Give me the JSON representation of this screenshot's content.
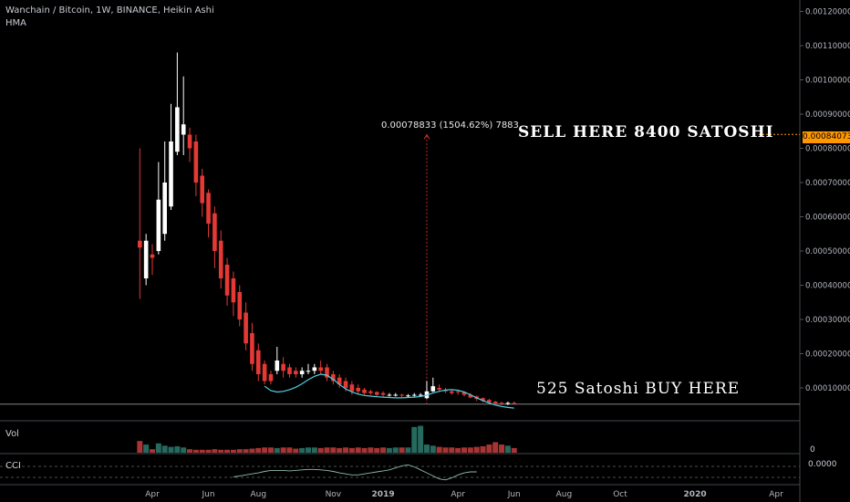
{
  "header": {
    "title": "Wanchain / Bitcoin, 1W, BINANCE, Heikin Ashi",
    "indicator": "HMA"
  },
  "annotations": {
    "sell": "SELL HERE 8400 SATOSHI",
    "buy": "525 Satoshi BUY HERE",
    "measure": "0.00078833 (1504.62%) 7883"
  },
  "price_tag": "0.00084073",
  "panes": {
    "volume_label": "Vol",
    "volume_axis": "0",
    "cci_label": "CCI",
    "cci_axis": "0.0000"
  },
  "colors": {
    "up": "#ffffff",
    "down": "#e53935",
    "hma": "#4dd0e1",
    "vol_up": "#26695e",
    "vol_down": "#a93434",
    "tag": "#ff9800"
  },
  "chart_data": {
    "type": "candlestick",
    "title": "Wanchain / Bitcoin, 1W, BINANCE, Heikin Ashi",
    "y_axis_ticks": [
      "0.00120000",
      "0.00110000",
      "0.00100000",
      "0.00090000",
      "0.00080000",
      "0.00070000",
      "0.00060000",
      "0.00050000",
      "0.00040000",
      "0.00030000",
      "0.00020000",
      "0.00010000"
    ],
    "ylim": [
      0.0,
      0.00127
    ],
    "x_axis_ticks": [
      "Apr",
      "Jun",
      "Aug",
      "Nov",
      "2019",
      "Apr",
      "Jun",
      "Aug",
      "Oct",
      "2020",
      "Apr"
    ],
    "x_axis_tick_weeks": [
      0,
      9,
      17,
      29,
      37,
      49,
      58,
      66,
      75,
      87,
      100
    ],
    "first_week": -2,
    "candles": [
      {
        "w": -2,
        "o": 0.00053,
        "c": 0.00051,
        "h": 0.0008,
        "l": 0.00036
      },
      {
        "w": -1,
        "o": 0.00042,
        "c": 0.00053,
        "h": 0.00055,
        "l": 0.0004
      },
      {
        "w": 0,
        "o": 0.00049,
        "c": 0.00048,
        "h": 0.00052,
        "l": 0.00043
      },
      {
        "w": 1,
        "o": 0.0005,
        "c": 0.00065,
        "h": 0.00076,
        "l": 0.00049
      },
      {
        "w": 2,
        "o": 0.00055,
        "c": 0.0007,
        "h": 0.00082,
        "l": 0.00053
      },
      {
        "w": 3,
        "o": 0.00063,
        "c": 0.00082,
        "h": 0.00093,
        "l": 0.00062
      },
      {
        "w": 4,
        "o": 0.00079,
        "c": 0.00092,
        "h": 0.00108,
        "l": 0.00078
      },
      {
        "w": 5,
        "o": 0.00084,
        "c": 0.00087,
        "h": 0.00101,
        "l": 0.00078
      },
      {
        "w": 6,
        "o": 0.00084,
        "c": 0.0008,
        "h": 0.00086,
        "l": 0.00076
      },
      {
        "w": 7,
        "o": 0.00082,
        "c": 0.0007,
        "h": 0.00084,
        "l": 0.00066
      },
      {
        "w": 8,
        "o": 0.00072,
        "c": 0.00064,
        "h": 0.00074,
        "l": 0.0006
      },
      {
        "w": 9,
        "o": 0.00067,
        "c": 0.00058,
        "h": 0.00068,
        "l": 0.00054
      },
      {
        "w": 10,
        "o": 0.00061,
        "c": 0.0005,
        "h": 0.00063,
        "l": 0.00045
      },
      {
        "w": 11,
        "o": 0.00053,
        "c": 0.00042,
        "h": 0.00056,
        "l": 0.00039
      },
      {
        "w": 12,
        "o": 0.00046,
        "c": 0.00037,
        "h": 0.00048,
        "l": 0.00034
      },
      {
        "w": 13,
        "o": 0.00042,
        "c": 0.00035,
        "h": 0.00044,
        "l": 0.00031
      },
      {
        "w": 14,
        "o": 0.00038,
        "c": 0.0003,
        "h": 0.0004,
        "l": 0.00028
      },
      {
        "w": 15,
        "o": 0.00032,
        "c": 0.00023,
        "h": 0.00035,
        "l": 0.00021
      },
      {
        "w": 16,
        "o": 0.00026,
        "c": 0.00017,
        "h": 0.00029,
        "l": 0.00015
      },
      {
        "w": 17,
        "o": 0.00021,
        "c": 0.00014,
        "h": 0.00023,
        "l": 0.00012
      },
      {
        "w": 18,
        "o": 0.00017,
        "c": 0.00012,
        "h": 0.00018,
        "l": 0.00011
      },
      {
        "w": 19,
        "o": 0.00014,
        "c": 0.00012,
        "h": 0.00015,
        "l": 0.00011
      },
      {
        "w": 20,
        "o": 0.00015,
        "c": 0.00018,
        "h": 0.00022,
        "l": 0.00014
      },
      {
        "w": 21,
        "o": 0.00017,
        "c": 0.00015,
        "h": 0.00019,
        "l": 0.00013
      },
      {
        "w": 22,
        "o": 0.00016,
        "c": 0.00014,
        "h": 0.00017,
        "l": 0.00013
      },
      {
        "w": 23,
        "o": 0.00015,
        "c": 0.00014,
        "h": 0.00016,
        "l": 0.00013
      },
      {
        "w": 24,
        "o": 0.00014,
        "c": 0.00015,
        "h": 0.00016,
        "l": 0.00013
      },
      {
        "w": 25,
        "o": 0.00015,
        "c": 0.00015,
        "h": 0.00017,
        "l": 0.00014
      },
      {
        "w": 26,
        "o": 0.00015,
        "c": 0.00016,
        "h": 0.00017,
        "l": 0.00014
      },
      {
        "w": 27,
        "o": 0.00016,
        "c": 0.00015,
        "h": 0.00018,
        "l": 0.00014
      },
      {
        "w": 28,
        "o": 0.00016,
        "c": 0.00013,
        "h": 0.00017,
        "l": 0.00012
      },
      {
        "w": 29,
        "o": 0.00014,
        "c": 0.00012,
        "h": 0.00015,
        "l": 0.00011
      },
      {
        "w": 30,
        "o": 0.00013,
        "c": 0.00011,
        "h": 0.00014,
        "l": 0.0001
      },
      {
        "w": 31,
        "o": 0.00012,
        "c": 0.0001,
        "h": 0.00013,
        "l": 9e-05
      },
      {
        "w": 32,
        "o": 0.00011,
        "c": 9e-05,
        "h": 0.00012,
        "l": 8e-05
      },
      {
        "w": 33,
        "o": 0.0001,
        "c": 9e-05,
        "h": 0.00011,
        "l": 8e-05
      },
      {
        "w": 34,
        "o": 9.5e-05,
        "c": 8.5e-05,
        "h": 0.0001,
        "l": 8e-05
      },
      {
        "w": 35,
        "o": 9e-05,
        "c": 8.5e-05,
        "h": 9.5e-05,
        "l": 8e-05
      },
      {
        "w": 36,
        "o": 8.8e-05,
        "c": 8e-05,
        "h": 9e-05,
        "l": 7.5e-05
      },
      {
        "w": 37,
        "o": 8.5e-05,
        "c": 8e-05,
        "h": 9e-05,
        "l": 7.5e-05
      },
      {
        "w": 38,
        "o": 8e-05,
        "c": 8e-05,
        "h": 8.5e-05,
        "l": 7.5e-05
      },
      {
        "w": 39,
        "o": 8e-05,
        "c": 8e-05,
        "h": 8.5e-05,
        "l": 7.5e-05
      },
      {
        "w": 40,
        "o": 8e-05,
        "c": 7.8e-05,
        "h": 8.3e-05,
        "l": 7.3e-05
      },
      {
        "w": 41,
        "o": 7.8e-05,
        "c": 7.8e-05,
        "h": 8.2e-05,
        "l": 7.3e-05
      },
      {
        "w": 42,
        "o": 7.8e-05,
        "c": 8e-05,
        "h": 8.5e-05,
        "l": 7.4e-05
      },
      {
        "w": 43,
        "o": 8e-05,
        "c": 8e-05,
        "h": 8.5e-05,
        "l": 7.5e-05
      },
      {
        "w": 44,
        "o": 7e-05,
        "c": 9e-05,
        "h": 0.00012,
        "l": 6.8e-05
      },
      {
        "w": 45,
        "o": 9e-05,
        "c": 0.000105,
        "h": 0.00013,
        "l": 8.8e-05
      },
      {
        "w": 46,
        "o": 0.0001,
        "c": 9.5e-05,
        "h": 0.00011,
        "l": 9e-05
      },
      {
        "w": 47,
        "o": 9.5e-05,
        "c": 9e-05,
        "h": 0.0001,
        "l": 8.5e-05
      },
      {
        "w": 48,
        "o": 9e-05,
        "c": 8.5e-05,
        "h": 9.5e-05,
        "l": 8e-05
      },
      {
        "w": 49,
        "o": 9e-05,
        "c": 8.8e-05,
        "h": 9.5e-05,
        "l": 8e-05
      },
      {
        "w": 50,
        "o": 8.8e-05,
        "c": 8e-05,
        "h": 9e-05,
        "l": 7.5e-05
      },
      {
        "w": 51,
        "o": 8e-05,
        "c": 7.2e-05,
        "h": 8.5e-05,
        "l": 7e-05
      },
      {
        "w": 52,
        "o": 7.5e-05,
        "c": 6.8e-05,
        "h": 7.8e-05,
        "l": 6.2e-05
      },
      {
        "w": 53,
        "o": 7e-05,
        "c": 6.2e-05,
        "h": 7.2e-05,
        "l": 5.8e-05
      },
      {
        "w": 54,
        "o": 6.5e-05,
        "c": 5.8e-05,
        "h": 6.8e-05,
        "l": 5.5e-05
      },
      {
        "w": 55,
        "o": 6e-05,
        "c": 5.5e-05,
        "h": 6.2e-05,
        "l": 5.2e-05
      },
      {
        "w": 56,
        "o": 5.6e-05,
        "c": 5.4e-05,
        "h": 6e-05,
        "l": 5e-05
      },
      {
        "w": 57,
        "o": 5.5e-05,
        "c": 5.6e-05,
        "h": 6e-05,
        "l": 5e-05
      },
      {
        "w": 58,
        "o": 5.6e-05,
        "c": 5.5e-05,
        "h": 6e-05,
        "l": 5.2e-05
      }
    ],
    "hma": [
      {
        "w": 18,
        "v": 0.000105
      },
      {
        "w": 19,
        "v": 9.2e-05
      },
      {
        "w": 20,
        "v": 8.8e-05
      },
      {
        "w": 21,
        "v": 9e-05
      },
      {
        "w": 22,
        "v": 9.5e-05
      },
      {
        "w": 23,
        "v": 0.000102
      },
      {
        "w": 24,
        "v": 0.000112
      },
      {
        "w": 25,
        "v": 0.000124
      },
      {
        "w": 26,
        "v": 0.000134
      },
      {
        "w": 27,
        "v": 0.00014
      },
      {
        "w": 28,
        "v": 0.000137
      },
      {
        "w": 29,
        "v": 0.000125
      },
      {
        "w": 30,
        "v": 0.00011
      },
      {
        "w": 31,
        "v": 9.7e-05
      },
      {
        "w": 32,
        "v": 8.8e-05
      },
      {
        "w": 33,
        "v": 8.2e-05
      },
      {
        "w": 34,
        "v": 7.8e-05
      },
      {
        "w": 35,
        "v": 7.6e-05
      },
      {
        "w": 36,
        "v": 7.4e-05
      },
      {
        "w": 37,
        "v": 7.3e-05
      },
      {
        "w": 38,
        "v": 7.2e-05
      },
      {
        "w": 39,
        "v": 7.1e-05
      },
      {
        "w": 40,
        "v": 7.1e-05
      },
      {
        "w": 41,
        "v": 7.2e-05
      },
      {
        "w": 42,
        "v": 7.3e-05
      },
      {
        "w": 43,
        "v": 7.5e-05
      },
      {
        "w": 44,
        "v": 7.9e-05
      },
      {
        "w": 45,
        "v": 8.5e-05
      },
      {
        "w": 46,
        "v": 9e-05
      },
      {
        "w": 47,
        "v": 9.4e-05
      },
      {
        "w": 48,
        "v": 9.5e-05
      },
      {
        "w": 49,
        "v": 9.3e-05
      },
      {
        "w": 50,
        "v": 8.8e-05
      },
      {
        "w": 51,
        "v": 8e-05
      },
      {
        "w": 52,
        "v": 7.1e-05
      },
      {
        "w": 53,
        "v": 6.3e-05
      },
      {
        "w": 54,
        "v": 5.6e-05
      },
      {
        "w": 55,
        "v": 5e-05
      },
      {
        "w": 56,
        "v": 4.6e-05
      },
      {
        "w": 57,
        "v": 4.3e-05
      },
      {
        "w": 58,
        "v": 4.1e-05
      }
    ],
    "volume": [
      20,
      14,
      6,
      16,
      12,
      10,
      11,
      9,
      6,
      5,
      5,
      5,
      6,
      5,
      5,
      5,
      6,
      6,
      7,
      8,
      9,
      9,
      8,
      9,
      9,
      7,
      8,
      9,
      9,
      8,
      9,
      9,
      8,
      9,
      8,
      9,
      8,
      9,
      8,
      9,
      8,
      9,
      9,
      9,
      44,
      46,
      14,
      12,
      10,
      9,
      9,
      8,
      9,
      9,
      10,
      11,
      14,
      18,
      14,
      12,
      8
    ],
    "volume_ylim": [
      0,
      50
    ],
    "cci": [
      -10,
      -8,
      -6,
      -4,
      -2,
      1,
      3,
      3,
      3,
      2,
      3,
      4,
      5,
      5,
      4,
      3,
      1,
      -2,
      -4,
      -6,
      -6,
      -4,
      -2,
      0,
      2,
      4,
      8,
      12,
      14,
      10,
      4,
      -2,
      -8,
      -14,
      -16,
      -12,
      -6,
      -2,
      0,
      0
    ],
    "cci_first_week": 13,
    "cci_ylim": [
      -20,
      20
    ],
    "sell_level": 0.00084073,
    "buy_level": 5.25e-05,
    "measure": {
      "w": 44,
      "from": 5.25e-05,
      "to": 0.00084
    }
  }
}
